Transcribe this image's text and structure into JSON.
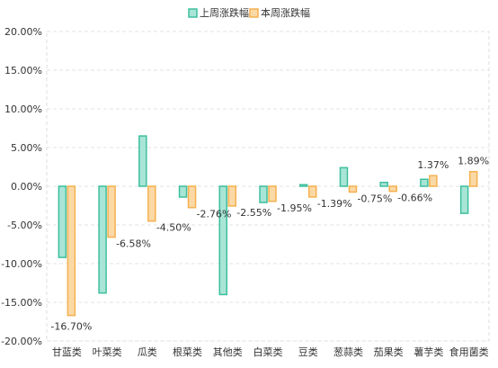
{
  "chart_data": {
    "type": "bar",
    "categories": [
      "甘蓝类",
      "叶菜类",
      "瓜类",
      "根菜类",
      "其他类",
      "白菜类",
      "豆类",
      "葱蒜类",
      "茄果类",
      "薯芋类",
      "食用菌类"
    ],
    "series": [
      {
        "name": "上周涨跌幅",
        "values": [
          -9.2,
          -13.8,
          6.5,
          -1.4,
          -14.0,
          -2.1,
          0.2,
          2.4,
          0.5,
          0.9,
          -3.5
        ],
        "fill": "#a9e5d6",
        "stroke": "#3dbf9e"
      },
      {
        "name": "本周涨跌幅",
        "values": [
          -16.7,
          -6.58,
          -4.5,
          -2.76,
          -2.55,
          -1.95,
          -1.39,
          -0.75,
          -0.66,
          1.37,
          1.89
        ],
        "fill": "#fbd9a6",
        "stroke": "#f5b04f",
        "labels": [
          "-16.70%",
          "-6.58%",
          "-4.50%",
          "-2.76%",
          "-2.55%",
          "-1.95%",
          "-1.39%",
          "-0.75%",
          "-0.66%",
          "1.37%",
          "1.89%"
        ]
      }
    ],
    "y_ticks": [
      "20.00%",
      "15.00%",
      "10.00%",
      "5.00%",
      "0.00%",
      "-5.00%",
      "-10.00%",
      "-15.00%",
      "-20.00%"
    ],
    "ylim": [
      -20,
      20
    ],
    "grid": true,
    "legend_position": "top-center"
  }
}
